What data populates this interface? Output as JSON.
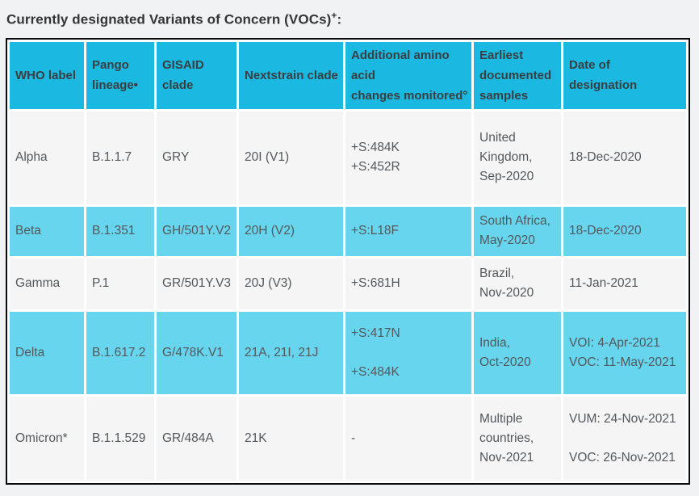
{
  "title": {
    "text": "Currently designated Variants of Concern (VOCs)",
    "superscript": "+",
    "suffix": ":"
  },
  "colors": {
    "header_bg": "#1bb8e1",
    "highlight_row_bg": "#67d5ee",
    "plain_row_bg": "#f5f5f6",
    "page_bg": "#f1f2f3",
    "table_border": "#0b0b0b"
  },
  "table": {
    "columns": [
      "WHO label",
      "Pango\nlineage•",
      "GISAID\nclade",
      "Nextstrain clade",
      "Additional amino acid\nchanges monitored°",
      "Earliest documented samples",
      "Date of\ndesignation"
    ],
    "rows": [
      {
        "highlight": false,
        "cells": [
          "Alpha",
          "B.1.1.7",
          "GRY",
          "20I (V1)",
          "+S:484K\n+S:452R",
          "United Kingdom,\nSep-2020",
          "18-Dec-2020"
        ]
      },
      {
        "highlight": true,
        "cells": [
          "Beta",
          "B.1.351",
          "GH/501Y.V2",
          "20H (V2)",
          "+S:L18F",
          "South Africa,\nMay-2020",
          "18-Dec-2020"
        ]
      },
      {
        "highlight": false,
        "cells": [
          "Gamma",
          "P.1",
          "GR/501Y.V3",
          "20J (V3)",
          "+S:681H",
          "Brazil,\nNov-2020",
          "11-Jan-2021"
        ]
      },
      {
        "highlight": true,
        "cells": [
          "Delta",
          "B.1.617.2",
          "G/478K.V1",
          "21A, 21I, 21J",
          "+S:417N\n\n+S:484K",
          "India,\nOct-2020",
          "VOI: 4-Apr-2021\nVOC: 11-May-2021"
        ]
      },
      {
        "highlight": false,
        "cells": [
          "Omicron*",
          "B.1.1.529",
          "GR/484A",
          "21K",
          "-",
          "Multiple countries,\nNov-2021",
          "VUM: 24-Nov-2021\n\nVOC: 26-Nov-2021"
        ]
      }
    ]
  }
}
